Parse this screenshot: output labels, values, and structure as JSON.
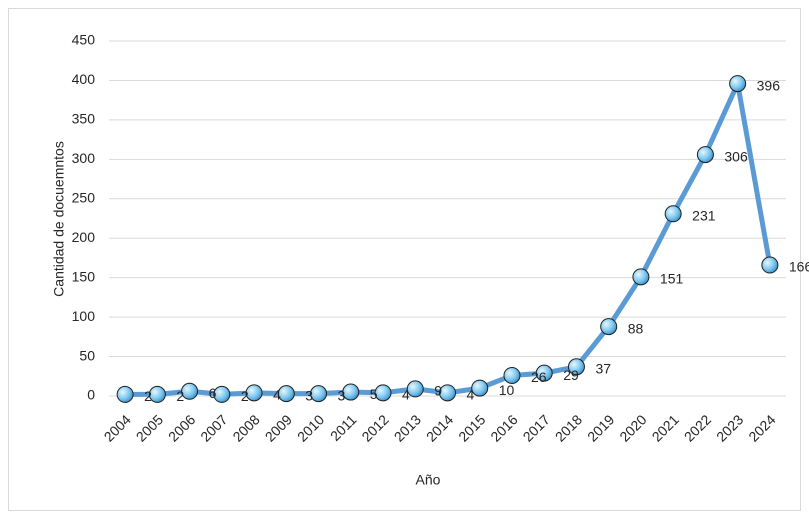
{
  "chart_data": {
    "type": "line",
    "categories": [
      "2004",
      "2005",
      "2006",
      "2007",
      "2008",
      "2009",
      "2010",
      "2011",
      "2012",
      "2013",
      "2014",
      "2015",
      "2016",
      "2017",
      "2018",
      "2019",
      "2020",
      "2021",
      "2022",
      "2023",
      "2024"
    ],
    "values": [
      2,
      2,
      6,
      2,
      4,
      3,
      3,
      5,
      4,
      9,
      4,
      10,
      26,
      29,
      37,
      88,
      151,
      231,
      306,
      396,
      166
    ],
    "color": "#5b9bd5",
    "ylim": [
      0,
      450
    ],
    "yticks": [
      0,
      50,
      100,
      150,
      200,
      250,
      300,
      350,
      400,
      450
    ],
    "grid": true,
    "ylabel": "Cantidad de docuemntos",
    "xlabel": "Año"
  }
}
